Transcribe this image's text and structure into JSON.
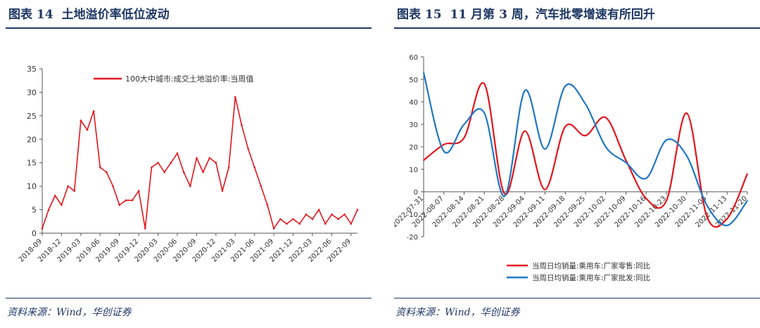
{
  "left": {
    "figure_label": "图表 14",
    "title": "土地溢价率低位波动",
    "source": "资料来源：Wind，华创证券"
  },
  "right": {
    "figure_label": "图表 15",
    "title": "11 月第 3 周，汽车批零增速有所回升",
    "source": "资料来源：Wind，华创证券"
  },
  "chart_data": [
    {
      "type": "line",
      "title": "",
      "ylim": [
        0,
        35
      ],
      "yticks": [
        0,
        5,
        10,
        15,
        20,
        25,
        30,
        35
      ],
      "xlim": [
        "2018-09",
        "2022-10"
      ],
      "xticks": [
        "2018-09",
        "2018-12",
        "2019-03",
        "2019-06",
        "2019-09",
        "2019-12",
        "2020-03",
        "2020-06",
        "2020-09",
        "2020-12",
        "2021-03",
        "2021-06",
        "2021-09",
        "2021-12",
        "2022-03",
        "2022-06",
        "2022-09"
      ],
      "legend_position": "top",
      "colors": [
        "#e3161d"
      ],
      "series": [
        {
          "name": "100大中城市:成交土地溢价率:当周值",
          "x": [
            "2018-09",
            "2018-10",
            "2018-11",
            "2018-12",
            "2019-01",
            "2019-02",
            "2019-03",
            "2019-04",
            "2019-05",
            "2019-06",
            "2019-07",
            "2019-08",
            "2019-09",
            "2019-10",
            "2019-11",
            "2019-12",
            "2020-01",
            "2020-02",
            "2020-03",
            "2020-04",
            "2020-05",
            "2020-06",
            "2020-07",
            "2020-08",
            "2020-09",
            "2020-10",
            "2020-11",
            "2020-12",
            "2021-01",
            "2021-02",
            "2021-03",
            "2021-04",
            "2021-05",
            "2021-06",
            "2021-07",
            "2021-08",
            "2021-09",
            "2021-10",
            "2021-11",
            "2021-12",
            "2022-01",
            "2022-02",
            "2022-03",
            "2022-04",
            "2022-05",
            "2022-06",
            "2022-07",
            "2022-08",
            "2022-09",
            "2022-10"
          ],
          "values": [
            1,
            5,
            8,
            6,
            10,
            9,
            24,
            22,
            26,
            14,
            13,
            10,
            6,
            7,
            7,
            9,
            1,
            14,
            15,
            13,
            15,
            17,
            13,
            10,
            16,
            13,
            16,
            15,
            9,
            14,
            29,
            23,
            18,
            14,
            10,
            6,
            1,
            3,
            2,
            3,
            2,
            4,
            3,
            5,
            2,
            4,
            3,
            4,
            2,
            5
          ]
        }
      ]
    },
    {
      "type": "line",
      "title": "",
      "ylim": [
        -20,
        60
      ],
      "yticks": [
        -20,
        -10,
        0,
        10,
        20,
        30,
        40,
        50,
        60
      ],
      "x": [
        "2022-07-31",
        "2022-08-07",
        "2022-08-14",
        "2022-08-21",
        "2022-08-28",
        "2022-09-04",
        "2022-09-11",
        "2022-09-18",
        "2022-09-25",
        "2022-10-02",
        "2022-10-09",
        "2022-10-16",
        "2022-10-23",
        "2022-10-30",
        "2022-11-06",
        "2022-11-13",
        "2022-11-20"
      ],
      "legend_position": "bottom",
      "colors": [
        "#e3161d",
        "#1f77c4"
      ],
      "series": [
        {
          "name": "当周日均销量:乘用车:厂家零售:同比",
          "values": [
            14,
            21,
            24,
            48,
            -1,
            27,
            1,
            29,
            25,
            33,
            14,
            -3,
            -4,
            35,
            -11,
            -12,
            8
          ]
        },
        {
          "name": "当周日均销量:乘用车:厂家批发:同比",
          "values": [
            53,
            18,
            30,
            35,
            -2,
            45,
            19,
            47,
            39,
            20,
            13,
            6,
            23,
            16,
            -6,
            -15,
            -4
          ]
        }
      ]
    }
  ]
}
